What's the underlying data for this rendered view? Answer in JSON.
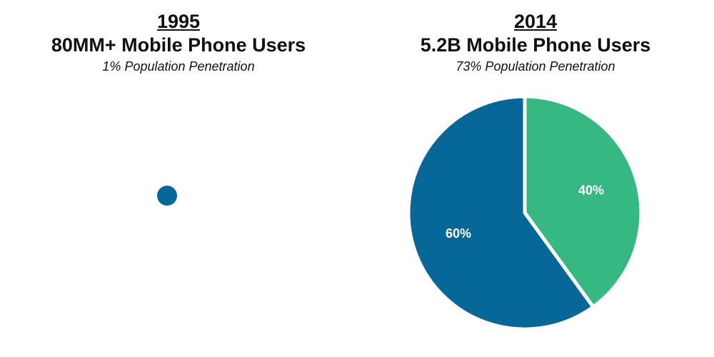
{
  "chart_data": [
    {
      "type": "pie",
      "year": "1995",
      "title": "80MM+ Mobile Phone Users",
      "subtitle": "1% Population Penetration",
      "slices": [
        {
          "value": 100,
          "label": "",
          "color": "#066799"
        }
      ]
    },
    {
      "type": "pie",
      "year": "2014",
      "title": "5.2B Mobile Phone Users",
      "subtitle": "73% Population Penetration",
      "slices": [
        {
          "value": 40,
          "label": "40%",
          "color": "#35b882"
        },
        {
          "value": 60,
          "label": "60%",
          "color": "#066799"
        }
      ]
    }
  ]
}
